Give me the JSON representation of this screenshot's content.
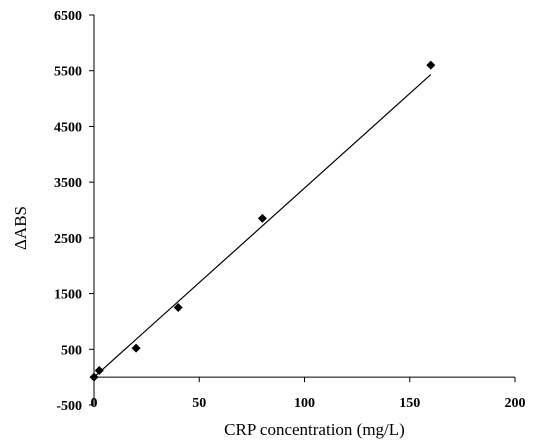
{
  "chart_data": {
    "type": "scatter",
    "xlabel": "CRP concentration (mg/L)",
    "ylabel": "ΔABS",
    "xlim": [
      0,
      200
    ],
    "ylim": [
      -500,
      6500
    ],
    "x_ticks": [
      0,
      50,
      100,
      150,
      200
    ],
    "y_ticks": [
      -500,
      500,
      1500,
      2500,
      3500,
      4500,
      5500,
      6500
    ],
    "grid": false,
    "legend": "none",
    "series": [
      {
        "marker": "diamond",
        "color": "#000000",
        "points": [
          {
            "x": 0,
            "y": 0
          },
          {
            "x": 2.5,
            "y": 120
          },
          {
            "x": 20,
            "y": 520
          },
          {
            "x": 40,
            "y": 1250
          },
          {
            "x": 80,
            "y": 2850
          },
          {
            "x": 160,
            "y": 5600
          }
        ]
      }
    ],
    "trendline": {
      "type": "linear",
      "x": [
        0,
        160
      ],
      "y": [
        0,
        5430
      ]
    }
  }
}
